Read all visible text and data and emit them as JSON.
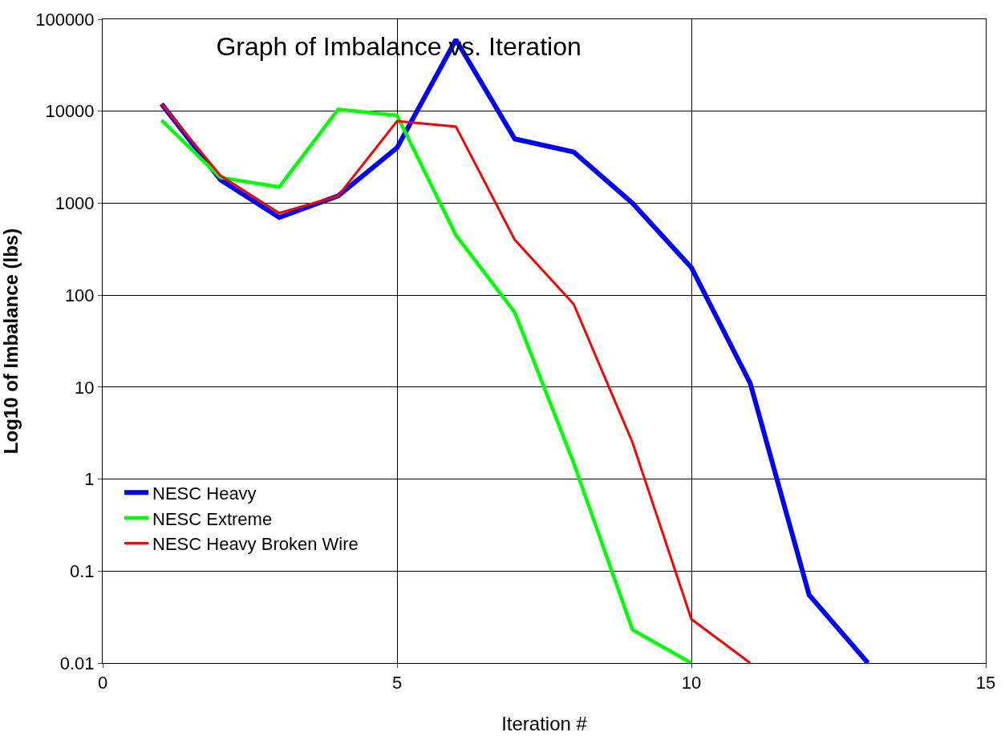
{
  "chart_data": {
    "type": "line",
    "title": "Graph of Imbalance vs. Iteration",
    "xlabel": "Iteration #",
    "ylabel": "Log10 of Imbalance (lbs)",
    "x": [
      1,
      2,
      3,
      4,
      5,
      6,
      7,
      8,
      9,
      10,
      11,
      12,
      13
    ],
    "series": [
      {
        "name": "NESC Heavy",
        "color": "#0000ff",
        "values": [
          12000,
          1800,
          700,
          1200,
          4000,
          60000,
          5000,
          3600,
          1000,
          200,
          11,
          0.055,
          0.01
        ]
      },
      {
        "name": "NESC Extreme",
        "color": "#00ff00",
        "values": [
          8000,
          1900,
          1500,
          10500,
          9000,
          450,
          65,
          1.5,
          0.023,
          0.01,
          null,
          null,
          null
        ]
      },
      {
        "name": "NESC Heavy Broken Wire",
        "color": "#ff0000",
        "values": [
          12000,
          2000,
          780,
          1200,
          7800,
          6800,
          400,
          80,
          2.5,
          0.03,
          0.01,
          null,
          null
        ]
      }
    ],
    "log": "y",
    "xlim": [
      0,
      15
    ],
    "xticks": [
      0,
      5,
      10,
      15
    ],
    "ylim": [
      0.01,
      100000
    ],
    "yticks": [
      0.01,
      0.1,
      1,
      10,
      100,
      1000,
      10000,
      100000
    ],
    "grid": true,
    "legend": "bottom left",
    "marker": "none",
    "line_style": "solid"
  }
}
